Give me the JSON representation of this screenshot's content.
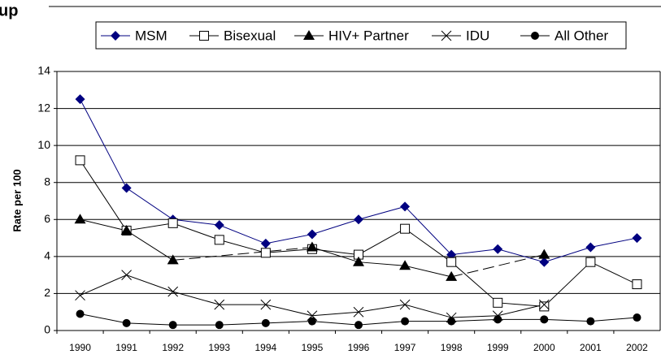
{
  "chart_data": {
    "type": "line",
    "title": "up",
    "y_label": "Rate per 100",
    "categories": [
      "1990",
      "1991",
      "1992",
      "1993",
      "1994",
      "1995",
      "1996",
      "1997",
      "1998",
      "1999",
      "2000",
      "2001",
      "2002"
    ],
    "ylim": [
      0,
      14
    ],
    "yticks": [
      0,
      2,
      4,
      6,
      8,
      10,
      12,
      14
    ],
    "grid": true,
    "legend": "top",
    "gaps": "dashed",
    "series": [
      {
        "name": "MSM",
        "color": "#000080",
        "marker": "diamond",
        "values": [
          12.5,
          7.7,
          6.0,
          5.7,
          4.7,
          5.2,
          6.0,
          6.7,
          4.1,
          4.4,
          3.7,
          4.5,
          5.0
        ]
      },
      {
        "name": "Bisexual",
        "color": "#000000",
        "marker": "square-open",
        "values": [
          9.2,
          5.4,
          5.8,
          4.9,
          4.2,
          4.4,
          4.1,
          5.5,
          3.7,
          1.5,
          1.3,
          3.7,
          2.5
        ]
      },
      {
        "name": "HIV+ Partner",
        "color": "#000000",
        "marker": "triangle",
        "values": [
          6.0,
          5.4,
          3.8,
          null,
          null,
          4.5,
          3.7,
          3.5,
          2.9,
          null,
          4.1,
          null,
          null
        ]
      },
      {
        "name": "IDU",
        "color": "#000000",
        "marker": "x",
        "values": [
          1.9,
          3.0,
          2.1,
          1.4,
          1.4,
          0.8,
          1.0,
          1.4,
          0.7,
          0.8,
          1.4,
          null,
          null
        ]
      },
      {
        "name": "All Other",
        "color": "#000000",
        "marker": "circle",
        "values": [
          0.9,
          0.4,
          0.3,
          0.3,
          0.4,
          0.5,
          0.3,
          0.5,
          0.5,
          0.6,
          0.6,
          0.5,
          0.7
        ]
      }
    ]
  }
}
